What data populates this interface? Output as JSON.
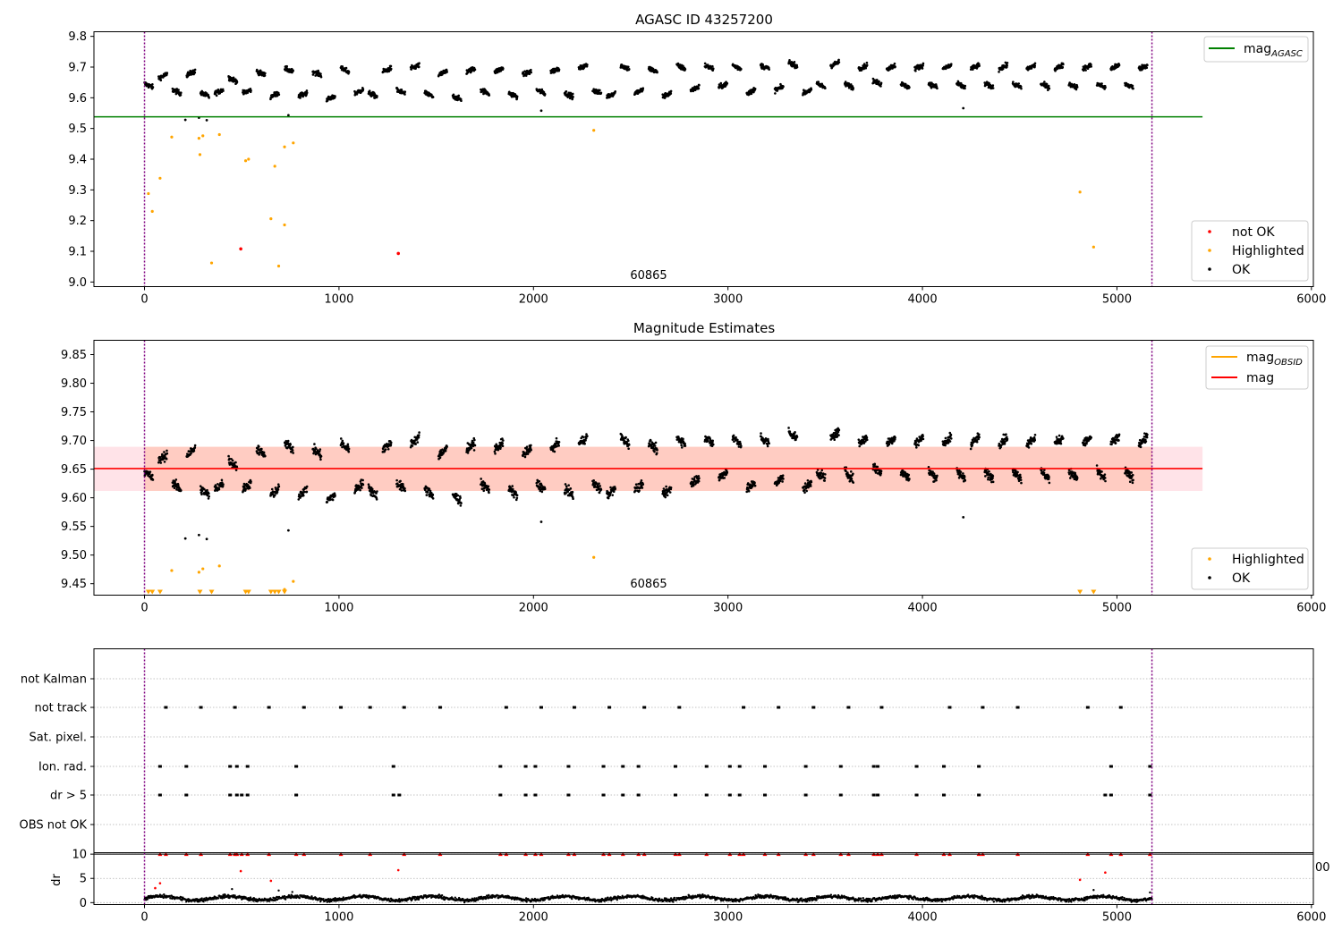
{
  "chart_data": [
    {
      "type": "scatter",
      "title": "AGASC ID 43257200",
      "xlim": [
        -260,
        6010
      ],
      "ylim": [
        8.985,
        9.815
      ],
      "xticks": [
        0,
        1000,
        2000,
        3000,
        4000,
        5000,
        6000
      ],
      "yticks": [
        9.0,
        9.1,
        9.2,
        9.3,
        9.4,
        9.5,
        9.6,
        9.7,
        9.8
      ],
      "xticks_text": [
        "0",
        "1000",
        "2000",
        "3000",
        "4000",
        "5000",
        "6000"
      ],
      "yticks_text": [
        "9.0",
        "9.1",
        "9.2",
        "9.3",
        "9.4",
        "9.5",
        "9.6",
        "9.7",
        "9.8"
      ],
      "annotation": "60865",
      "vlines": [
        0,
        5180
      ],
      "hline": {
        "name": "mag_AGASC",
        "label_main": "mag",
        "label_sub": "AGASC",
        "y": 9.538,
        "x_end": 5440,
        "color": "#008000"
      },
      "legend_upper": [
        {
          "label": "mag",
          "sub": "AGASC",
          "color": "#008000"
        }
      ],
      "legend_lower": [
        {
          "label": "not OK",
          "color": "#ff0000"
        },
        {
          "label": "Highlighted",
          "color": "#ffa500"
        },
        {
          "label": "OK",
          "color": "#000000"
        }
      ],
      "ok_trend": {
        "x_min": 0,
        "x_max": 5180,
        "segment_length": 72,
        "segment_pattern": [
          9.64,
          9.67,
          9.62,
          9.68,
          9.61,
          9.62,
          9.66,
          9.62,
          9.68,
          9.61,
          9.69,
          9.61,
          9.68,
          9.6,
          9.69,
          9.62,
          9.61,
          9.69,
          9.62,
          9.7,
          9.61,
          9.68,
          9.6,
          9.69,
          9.62,
          9.69,
          9.61,
          9.68,
          9.62,
          9.69,
          9.61,
          9.7,
          9.62,
          9.61,
          9.7,
          9.62,
          9.69,
          9.61,
          9.7,
          9.63,
          9.7,
          9.64,
          9.7,
          9.62,
          9.7,
          9.63,
          9.71,
          9.62,
          9.64,
          9.71,
          9.64,
          9.7,
          9.65,
          9.7,
          9.64,
          9.7,
          9.64,
          9.7,
          9.64,
          9.7,
          9.64,
          9.7,
          9.64,
          9.7,
          9.64,
          9.7,
          9.64,
          9.7,
          9.64,
          9.7,
          9.64,
          9.7
        ]
      },
      "ok_outliers": [
        {
          "x": 210,
          "y": 9.528
        },
        {
          "x": 280,
          "y": 9.535
        },
        {
          "x": 320,
          "y": 9.527
        },
        {
          "x": 740,
          "y": 9.543
        },
        {
          "x": 2040,
          "y": 9.558
        },
        {
          "x": 4210,
          "y": 9.566
        }
      ],
      "not_ok_points": [
        {
          "x": 495,
          "y": 9.108
        },
        {
          "x": 1305,
          "y": 9.093
        }
      ],
      "highlighted_points": [
        {
          "x": 20,
          "y": 9.288
        },
        {
          "x": 40,
          "y": 9.23
        },
        {
          "x": 80,
          "y": 9.338
        },
        {
          "x": 140,
          "y": 9.472
        },
        {
          "x": 280,
          "y": 9.468
        },
        {
          "x": 285,
          "y": 9.415
        },
        {
          "x": 300,
          "y": 9.476
        },
        {
          "x": 345,
          "y": 9.062
        },
        {
          "x": 385,
          "y": 9.48
        },
        {
          "x": 520,
          "y": 9.395
        },
        {
          "x": 535,
          "y": 9.4
        },
        {
          "x": 650,
          "y": 9.206
        },
        {
          "x": 670,
          "y": 9.377
        },
        {
          "x": 690,
          "y": 9.052
        },
        {
          "x": 720,
          "y": 9.186
        },
        {
          "x": 720,
          "y": 9.44
        },
        {
          "x": 765,
          "y": 9.453
        },
        {
          "x": 2310,
          "y": 9.494
        },
        {
          "x": 4810,
          "y": 9.293
        },
        {
          "x": 4880,
          "y": 9.114
        }
      ]
    },
    {
      "type": "scatter",
      "title": "Magnitude Estimates",
      "xlim": [
        -260,
        6010
      ],
      "ylim": [
        9.43,
        9.875
      ],
      "xticks": [
        0,
        1000,
        2000,
        3000,
        4000,
        5000,
        6000
      ],
      "yticks": [
        9.45,
        9.5,
        9.55,
        9.6,
        9.65,
        9.7,
        9.75,
        9.8,
        9.85
      ],
      "xticks_text": [
        "0",
        "1000",
        "2000",
        "3000",
        "4000",
        "5000",
        "6000"
      ],
      "yticks_text": [
        "9.45",
        "9.50",
        "9.55",
        "9.60",
        "9.65",
        "9.70",
        "9.75",
        "9.80",
        "9.85"
      ],
      "annotation": "60865",
      "vlines": [
        0,
        5180
      ],
      "mag_line": {
        "y": 9.651,
        "x_end": 5440,
        "color": "#ff0000"
      },
      "mag_band": {
        "y0": 9.612,
        "y1": 9.689,
        "x_end": 5440
      },
      "mag_obsid_band": {
        "y0": 9.612,
        "y1": 9.689,
        "x_end": 5180
      },
      "legend_upper": [
        {
          "label": "mag",
          "sub": "OBSID",
          "color": "#ffa500"
        },
        {
          "label": "mag",
          "color": "#ff0000"
        }
      ],
      "legend_lower": [
        {
          "label": "Highlighted",
          "color": "#ffa500"
        },
        {
          "label": "OK",
          "color": "#000000"
        }
      ],
      "highlighted_points": [
        {
          "x": 140,
          "y": 9.473
        },
        {
          "x": 280,
          "y": 9.47
        },
        {
          "x": 300,
          "y": 9.476
        },
        {
          "x": 385,
          "y": 9.481
        },
        {
          "x": 720,
          "y": 9.44
        },
        {
          "x": 765,
          "y": 9.454
        },
        {
          "x": 2310,
          "y": 9.496
        }
      ],
      "ok_outliers": [
        {
          "x": 210,
          "y": 9.529
        },
        {
          "x": 280,
          "y": 9.535
        },
        {
          "x": 320,
          "y": 9.528
        },
        {
          "x": 740,
          "y": 9.543
        },
        {
          "x": 2040,
          "y": 9.558
        },
        {
          "x": 4210,
          "y": 9.566
        }
      ],
      "clipped_markers_x": [
        20,
        40,
        80,
        285,
        345,
        520,
        535,
        650,
        670,
        690,
        720,
        4810,
        4880
      ]
    },
    {
      "type": "scatter",
      "title": "",
      "xlim": [
        -260,
        6010
      ],
      "categories": [
        "not Kalman",
        "not track",
        "Sat. pixel.",
        "Ion. rad.",
        "dr > 5",
        "OBS not OK"
      ],
      "vlines": [
        0,
        5180
      ],
      "flags": {
        "not track": [
          110,
          290,
          465,
          640,
          820,
          1010,
          1160,
          1335,
          1520,
          1860,
          2040,
          2210,
          2390,
          2570,
          2750,
          3080,
          3260,
          3440,
          3620,
          3790,
          4140,
          4310,
          4490,
          4850,
          5020
        ],
        "Ion. rad.": [
          80,
          215,
          440,
          475,
          530,
          780,
          1280,
          1830,
          1960,
          2010,
          2180,
          2360,
          2460,
          2540,
          2730,
          2890,
          3010,
          3060,
          3190,
          3400,
          3580,
          3750,
          3770,
          3970,
          4110,
          4290,
          4970,
          5170
        ],
        "dr > 5": [
          80,
          215,
          440,
          475,
          500,
          530,
          780,
          1280,
          1310,
          1830,
          1960,
          2010,
          2180,
          2360,
          2460,
          2540,
          2730,
          2890,
          3010,
          3060,
          3190,
          3400,
          3580,
          3750,
          3770,
          3970,
          4110,
          4290,
          4940,
          4970,
          5170
        ]
      }
    },
    {
      "type": "scatter",
      "title": "",
      "ylabel": "dr",
      "xlim": [
        -260,
        6010
      ],
      "ylim": [
        -0.4,
        10.3
      ],
      "xticks": [
        0,
        1000,
        2000,
        3000,
        4000,
        5000,
        6000
      ],
      "yticks": [
        0,
        5,
        10
      ],
      "xticks_text": [
        "0",
        "1000",
        "2000",
        "3000",
        "4000",
        "5000",
        "6000"
      ],
      "yticks_text": [
        "0",
        "5",
        "10"
      ],
      "clipped_right_label": "00",
      "vlines": [
        0,
        5180
      ],
      "hline_y": 10,
      "red_at_limit_x": [
        80,
        110,
        215,
        290,
        440,
        465,
        475,
        500,
        530,
        640,
        780,
        820,
        1010,
        1160,
        1335,
        1520,
        1830,
        1860,
        1960,
        2010,
        2040,
        2180,
        2210,
        2360,
        2390,
        2460,
        2540,
        2570,
        2730,
        2750,
        2890,
        3010,
        3060,
        3080,
        3190,
        3260,
        3400,
        3440,
        3580,
        3620,
        3750,
        3770,
        3790,
        3970,
        4110,
        4140,
        4290,
        4310,
        4490,
        4850,
        4970,
        5020,
        5170
      ],
      "red_points": [
        {
          "x": 55,
          "y": 3.0
        },
        {
          "x": 80,
          "y": 4.0
        },
        {
          "x": 495,
          "y": 6.5
        },
        {
          "x": 650,
          "y": 4.5
        },
        {
          "x": 1305,
          "y": 6.7
        },
        {
          "x": 4810,
          "y": 4.7
        },
        {
          "x": 4940,
          "y": 6.2
        }
      ],
      "black_outliers": [
        {
          "x": 450,
          "y": 2.8
        },
        {
          "x": 690,
          "y": 2.5
        },
        {
          "x": 760,
          "y": 2.2
        },
        {
          "x": 4880,
          "y": 2.6
        },
        {
          "x": 5170,
          "y": 2.1
        }
      ]
    }
  ]
}
